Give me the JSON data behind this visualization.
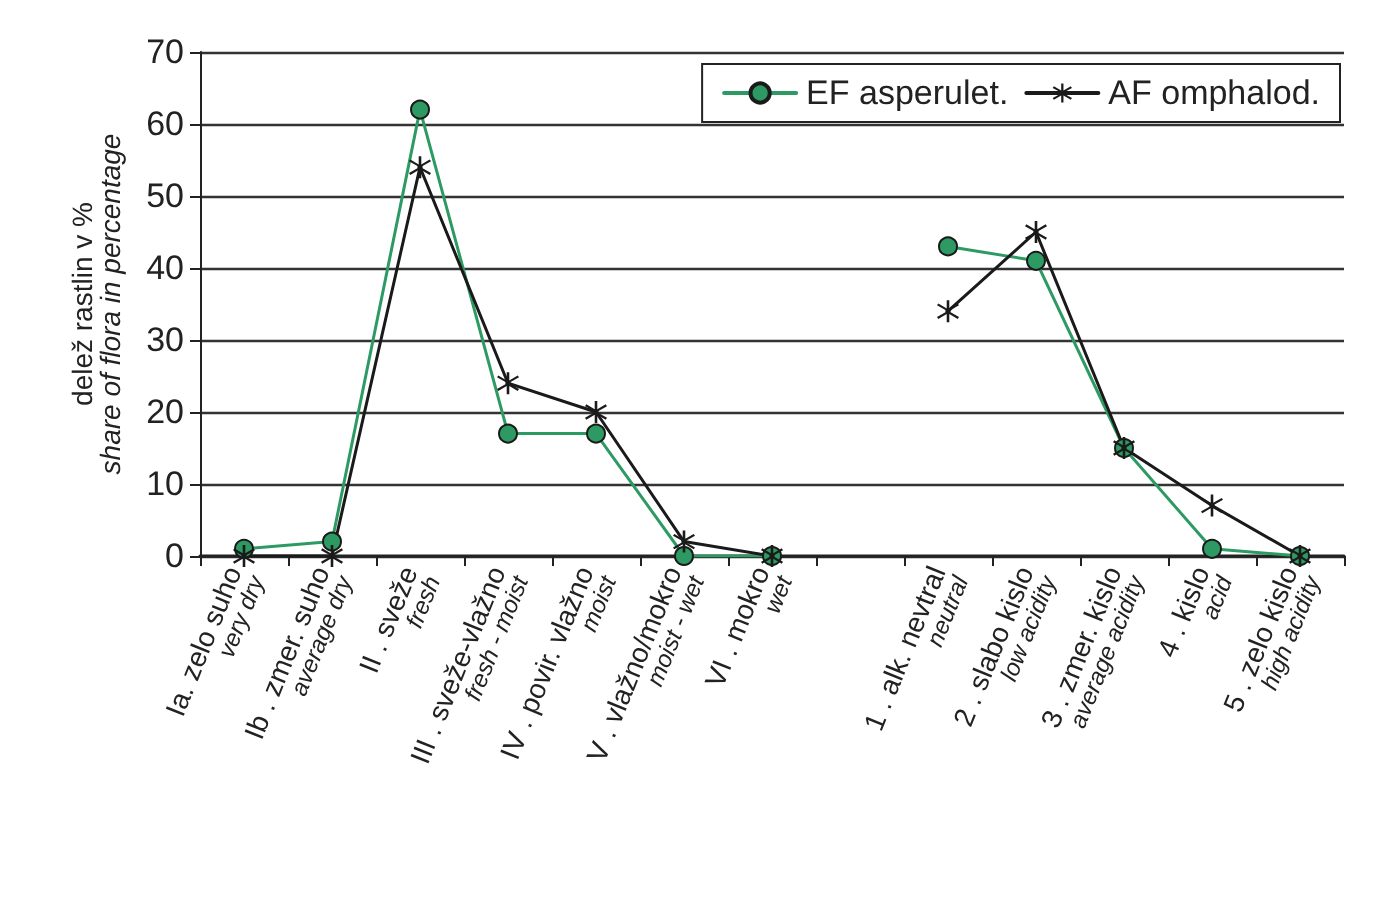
{
  "chart_data": {
    "type": "line",
    "ylabel": "delež rastlin v %\nshare of flora in percentage",
    "categories": [
      "Ia. zelo suho\nvery dry",
      "Ib . zmer. suho\naverage dry",
      "II . sveže\nfresh",
      "III . sveže-vlažno\nfresh - moist",
      "IV . povir. vlažno\nmoist",
      "V . vlažno/mokro\nmoist - wet",
      "VI . mokro\nwet",
      null,
      "1 . alk. nevtral\nneutral",
      "2 . slabo kislo\nlow acidity",
      "3 . zmer. kislo\naverage acidity",
      "4 . kislo\nacid",
      "5 . zelo kislo\nhigh acidity"
    ],
    "series": [
      {
        "name": "EF asperulet.",
        "color": "#2e9a63",
        "marker": "circle",
        "values": [
          1,
          2,
          62,
          17,
          17,
          0,
          0,
          null,
          43,
          41,
          15,
          1,
          0
        ]
      },
      {
        "name": "AF omphalod.",
        "color": "#1a1a1a",
        "marker": "cross",
        "values": [
          0,
          0,
          54,
          24,
          20,
          2,
          0,
          null,
          34,
          45,
          15,
          7,
          0
        ]
      }
    ],
    "ylim": [
      0,
      70
    ],
    "yticks": [
      0,
      10,
      20,
      30,
      40,
      50,
      60,
      70
    ],
    "grid": "y",
    "legend": "top right",
    "line_style": "solid"
  }
}
